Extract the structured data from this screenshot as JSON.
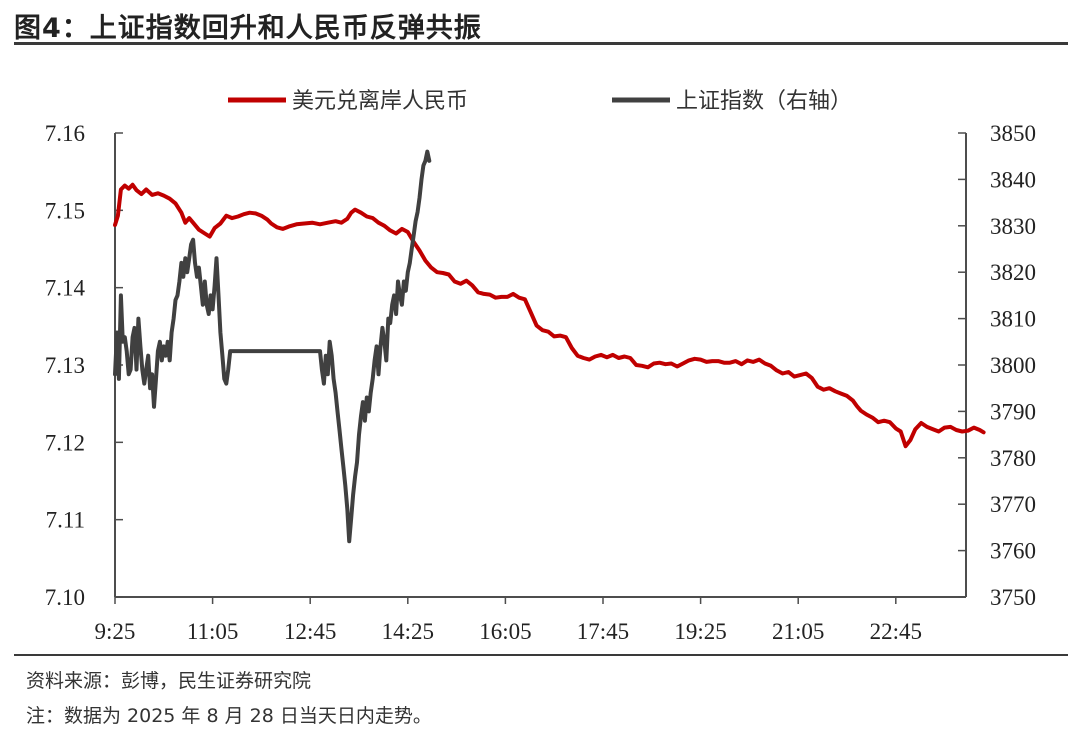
{
  "title": "图4：上证指数回升和人民币反弹共振",
  "footer": {
    "source": "资料来源：彭博，民生证券研究院",
    "note": "注：数据为 2025 年 8 月 28 日当天日内走势。"
  },
  "colors": {
    "cnh": "#c00000",
    "sse": "#404040",
    "axis": "#4d4d4d"
  },
  "chart_data": {
    "type": "line",
    "categories": [
      "9:25",
      "11:05",
      "12:45",
      "14:25",
      "16:05",
      "17:45",
      "19:25",
      "21:05",
      "22:45"
    ],
    "legend": {
      "position": "top-center"
    },
    "grid": false,
    "y_left": {
      "min": 7.1,
      "max": 7.16,
      "ticks": [
        "7.10",
        "7.11",
        "7.12",
        "7.13",
        "7.14",
        "7.15",
        "7.16"
      ]
    },
    "y_right": {
      "min": 3750,
      "max": 3850,
      "ticks": [
        "3750",
        "3760",
        "3770",
        "3780",
        "3790",
        "3800",
        "3810",
        "3820",
        "3830",
        "3840",
        "3850"
      ]
    },
    "series": [
      {
        "name": "美元兑离岸人民币",
        "axis": "left",
        "color": "#c00000",
        "x_unit": "minutes since 9:25",
        "points": [
          [
            0,
            7.1481
          ],
          [
            3,
            7.1493
          ],
          [
            6,
            7.1527
          ],
          [
            10,
            7.1532
          ],
          [
            14,
            7.1528
          ],
          [
            18,
            7.1533
          ],
          [
            22,
            7.1526
          ],
          [
            27,
            7.1521
          ],
          [
            32,
            7.1527
          ],
          [
            38,
            7.152
          ],
          [
            44,
            7.1522
          ],
          [
            50,
            7.1519
          ],
          [
            56,
            7.1515
          ],
          [
            62,
            7.1509
          ],
          [
            68,
            7.1497
          ],
          [
            72,
            7.1484
          ],
          [
            76,
            7.149
          ],
          [
            80,
            7.1484
          ],
          [
            86,
            7.1475
          ],
          [
            92,
            7.147
          ],
          [
            97,
            7.1466
          ],
          [
            102,
            7.1477
          ],
          [
            108,
            7.1483
          ],
          [
            114,
            7.1493
          ],
          [
            120,
            7.149
          ],
          [
            126,
            7.1492
          ],
          [
            132,
            7.1495
          ],
          [
            138,
            7.1497
          ],
          [
            144,
            7.1496
          ],
          [
            150,
            7.1493
          ],
          [
            156,
            7.1488
          ],
          [
            160,
            7.1483
          ],
          [
            166,
            7.1478
          ],
          [
            172,
            7.1476
          ],
          [
            178,
            7.1479
          ],
          [
            186,
            7.1482
          ],
          [
            194,
            7.1483
          ],
          [
            202,
            7.1484
          ],
          [
            210,
            7.1482
          ],
          [
            218,
            7.1484
          ],
          [
            226,
            7.1486
          ],
          [
            232,
            7.1484
          ],
          [
            238,
            7.1489
          ],
          [
            242,
            7.1497
          ],
          [
            246,
            7.1501
          ],
          [
            252,
            7.1497
          ],
          [
            258,
            7.1492
          ],
          [
            264,
            7.149
          ],
          [
            270,
            7.1484
          ],
          [
            276,
            7.148
          ],
          [
            282,
            7.1474
          ],
          [
            288,
            7.147
          ],
          [
            294,
            7.1476
          ],
          [
            300,
            7.1472
          ],
          [
            306,
            7.1459
          ],
          [
            312,
            7.1448
          ],
          [
            318,
            7.1435
          ],
          [
            324,
            7.1426
          ],
          [
            330,
            7.142
          ],
          [
            336,
            7.1419
          ],
          [
            342,
            7.1417
          ],
          [
            348,
            7.1408
          ],
          [
            354,
            7.1405
          ],
          [
            360,
            7.1409
          ],
          [
            366,
            7.1403
          ],
          [
            372,
            7.1394
          ],
          [
            378,
            7.1392
          ],
          [
            384,
            7.1391
          ],
          [
            390,
            7.1387
          ],
          [
            396,
            7.1388
          ],
          [
            402,
            7.1388
          ],
          [
            408,
            7.1392
          ],
          [
            414,
            7.1387
          ],
          [
            420,
            7.1385
          ],
          [
            426,
            7.1368
          ],
          [
            432,
            7.1351
          ],
          [
            438,
            7.1345
          ],
          [
            444,
            7.1343
          ],
          [
            450,
            7.1337
          ],
          [
            456,
            7.1338
          ],
          [
            462,
            7.1336
          ],
          [
            468,
            7.1322
          ],
          [
            474,
            7.1312
          ],
          [
            480,
            7.1309
          ],
          [
            486,
            7.1307
          ],
          [
            492,
            7.1311
          ],
          [
            498,
            7.1313
          ],
          [
            504,
            7.131
          ],
          [
            510,
            7.1313
          ],
          [
            516,
            7.1309
          ],
          [
            522,
            7.1311
          ],
          [
            528,
            7.1309
          ],
          [
            534,
            7.13
          ],
          [
            540,
            7.1299
          ],
          [
            546,
            7.1297
          ],
          [
            552,
            7.1302
          ],
          [
            558,
            7.1303
          ],
          [
            564,
            7.1301
          ],
          [
            570,
            7.1302
          ],
          [
            576,
            7.1298
          ],
          [
            582,
            7.1302
          ],
          [
            588,
            7.1306
          ],
          [
            594,
            7.1308
          ],
          [
            600,
            7.1307
          ],
          [
            606,
            7.1304
          ],
          [
            612,
            7.1305
          ],
          [
            618,
            7.1305
          ],
          [
            624,
            7.1303
          ],
          [
            630,
            7.1303
          ],
          [
            636,
            7.1305
          ],
          [
            642,
            7.1301
          ],
          [
            648,
            7.1306
          ],
          [
            654,
            7.1304
          ],
          [
            660,
            7.1307
          ],
          [
            666,
            7.1302
          ],
          [
            672,
            7.1299
          ],
          [
            678,
            7.1293
          ],
          [
            684,
            7.1289
          ],
          [
            690,
            7.1291
          ],
          [
            696,
            7.1285
          ],
          [
            702,
            7.1287
          ],
          [
            708,
            7.1289
          ],
          [
            714,
            7.1283
          ],
          [
            720,
            7.1272
          ],
          [
            726,
            7.1268
          ],
          [
            732,
            7.127
          ],
          [
            738,
            7.1266
          ],
          [
            744,
            7.1263
          ],
          [
            750,
            7.126
          ],
          [
            756,
            7.1254
          ],
          [
            760,
            7.1247
          ],
          [
            764,
            7.1241
          ],
          [
            770,
            7.1236
          ],
          [
            776,
            7.1232
          ],
          [
            782,
            7.1226
          ],
          [
            788,
            7.1228
          ],
          [
            794,
            7.1226
          ],
          [
            800,
            7.1218
          ],
          [
            805,
            7.1214
          ],
          [
            810,
            7.1195
          ],
          [
            815,
            7.1203
          ],
          [
            820,
            7.1217
          ],
          [
            826,
            7.1225
          ],
          [
            832,
            7.122
          ],
          [
            838,
            7.1217
          ],
          [
            844,
            7.1214
          ],
          [
            850,
            7.1219
          ],
          [
            856,
            7.122
          ],
          [
            862,
            7.1216
          ],
          [
            868,
            7.1214
          ],
          [
            874,
            7.1215
          ],
          [
            880,
            7.1219
          ],
          [
            886,
            7.1216
          ],
          [
            890,
            7.1213
          ]
        ]
      },
      {
        "name": "上证指数（右轴）",
        "axis": "right",
        "color": "#404040",
        "x_unit": "minutes since 9:25",
        "points": [
          [
            0,
            3798
          ],
          [
            2,
            3807
          ],
          [
            4,
            3797
          ],
          [
            6,
            3815
          ],
          [
            8,
            3805
          ],
          [
            10,
            3806
          ],
          [
            12,
            3803
          ],
          [
            14,
            3798
          ],
          [
            16,
            3799
          ],
          [
            18,
            3806
          ],
          [
            20,
            3808
          ],
          [
            22,
            3799
          ],
          [
            24,
            3810
          ],
          [
            26,
            3804
          ],
          [
            28,
            3799
          ],
          [
            30,
            3796
          ],
          [
            32,
            3799
          ],
          [
            34,
            3802
          ],
          [
            36,
            3795
          ],
          [
            38,
            3798
          ],
          [
            40,
            3791
          ],
          [
            42,
            3797
          ],
          [
            44,
            3803
          ],
          [
            46,
            3805
          ],
          [
            48,
            3801
          ],
          [
            50,
            3804
          ],
          [
            52,
            3802
          ],
          [
            54,
            3805
          ],
          [
            56,
            3801
          ],
          [
            58,
            3807
          ],
          [
            60,
            3810
          ],
          [
            62,
            3814
          ],
          [
            64,
            3815
          ],
          [
            66,
            3818
          ],
          [
            68,
            3822
          ],
          [
            70,
            3819
          ],
          [
            72,
            3823
          ],
          [
            74,
            3820
          ],
          [
            76,
            3823
          ],
          [
            78,
            3826
          ],
          [
            80,
            3827
          ],
          [
            82,
            3822
          ],
          [
            84,
            3819
          ],
          [
            86,
            3821
          ],
          [
            88,
            3817
          ],
          [
            90,
            3813
          ],
          [
            92,
            3818
          ],
          [
            94,
            3813
          ],
          [
            96,
            3811
          ],
          [
            98,
            3815
          ],
          [
            100,
            3812
          ],
          [
            102,
            3817
          ],
          [
            104,
            3823
          ],
          [
            106,
            3815
          ],
          [
            108,
            3807
          ],
          [
            110,
            3802
          ],
          [
            112,
            3797
          ],
          [
            114,
            3796
          ],
          [
            116,
            3799
          ],
          [
            118,
            3803
          ],
          [
            121,
            3803
          ],
          [
            140,
            3803
          ],
          [
            160,
            3803
          ],
          [
            180,
            3803
          ],
          [
            200,
            3803
          ],
          [
            210,
            3803
          ],
          [
            212,
            3799
          ],
          [
            214,
            3796
          ],
          [
            216,
            3802
          ],
          [
            218,
            3798
          ],
          [
            220,
            3805
          ],
          [
            222,
            3802
          ],
          [
            224,
            3797
          ],
          [
            226,
            3794
          ],
          [
            228,
            3790
          ],
          [
            230,
            3786
          ],
          [
            232,
            3782
          ],
          [
            234,
            3778
          ],
          [
            236,
            3774
          ],
          [
            238,
            3769
          ],
          [
            240,
            3762
          ],
          [
            242,
            3767
          ],
          [
            244,
            3772
          ],
          [
            246,
            3776
          ],
          [
            248,
            3779
          ],
          [
            250,
            3785
          ],
          [
            252,
            3789
          ],
          [
            254,
            3792
          ],
          [
            256,
            3788
          ],
          [
            258,
            3793
          ],
          [
            260,
            3790
          ],
          [
            262,
            3794
          ],
          [
            264,
            3797
          ],
          [
            266,
            3801
          ],
          [
            268,
            3804
          ],
          [
            270,
            3798
          ],
          [
            272,
            3804
          ],
          [
            274,
            3808
          ],
          [
            276,
            3805
          ],
          [
            278,
            3801
          ],
          [
            280,
            3810
          ],
          [
            282,
            3809
          ],
          [
            284,
            3813
          ],
          [
            286,
            3815
          ],
          [
            288,
            3811
          ],
          [
            290,
            3818
          ],
          [
            292,
            3815
          ],
          [
            294,
            3813
          ],
          [
            296,
            3818
          ],
          [
            298,
            3816
          ],
          [
            300,
            3820
          ],
          [
            302,
            3822
          ],
          [
            304,
            3825
          ],
          [
            306,
            3828
          ],
          [
            308,
            3831
          ],
          [
            310,
            3833
          ],
          [
            312,
            3836
          ],
          [
            314,
            3840
          ],
          [
            316,
            3843
          ],
          [
            318,
            3844
          ],
          [
            320,
            3846
          ],
          [
            322,
            3844
          ]
        ]
      }
    ]
  }
}
